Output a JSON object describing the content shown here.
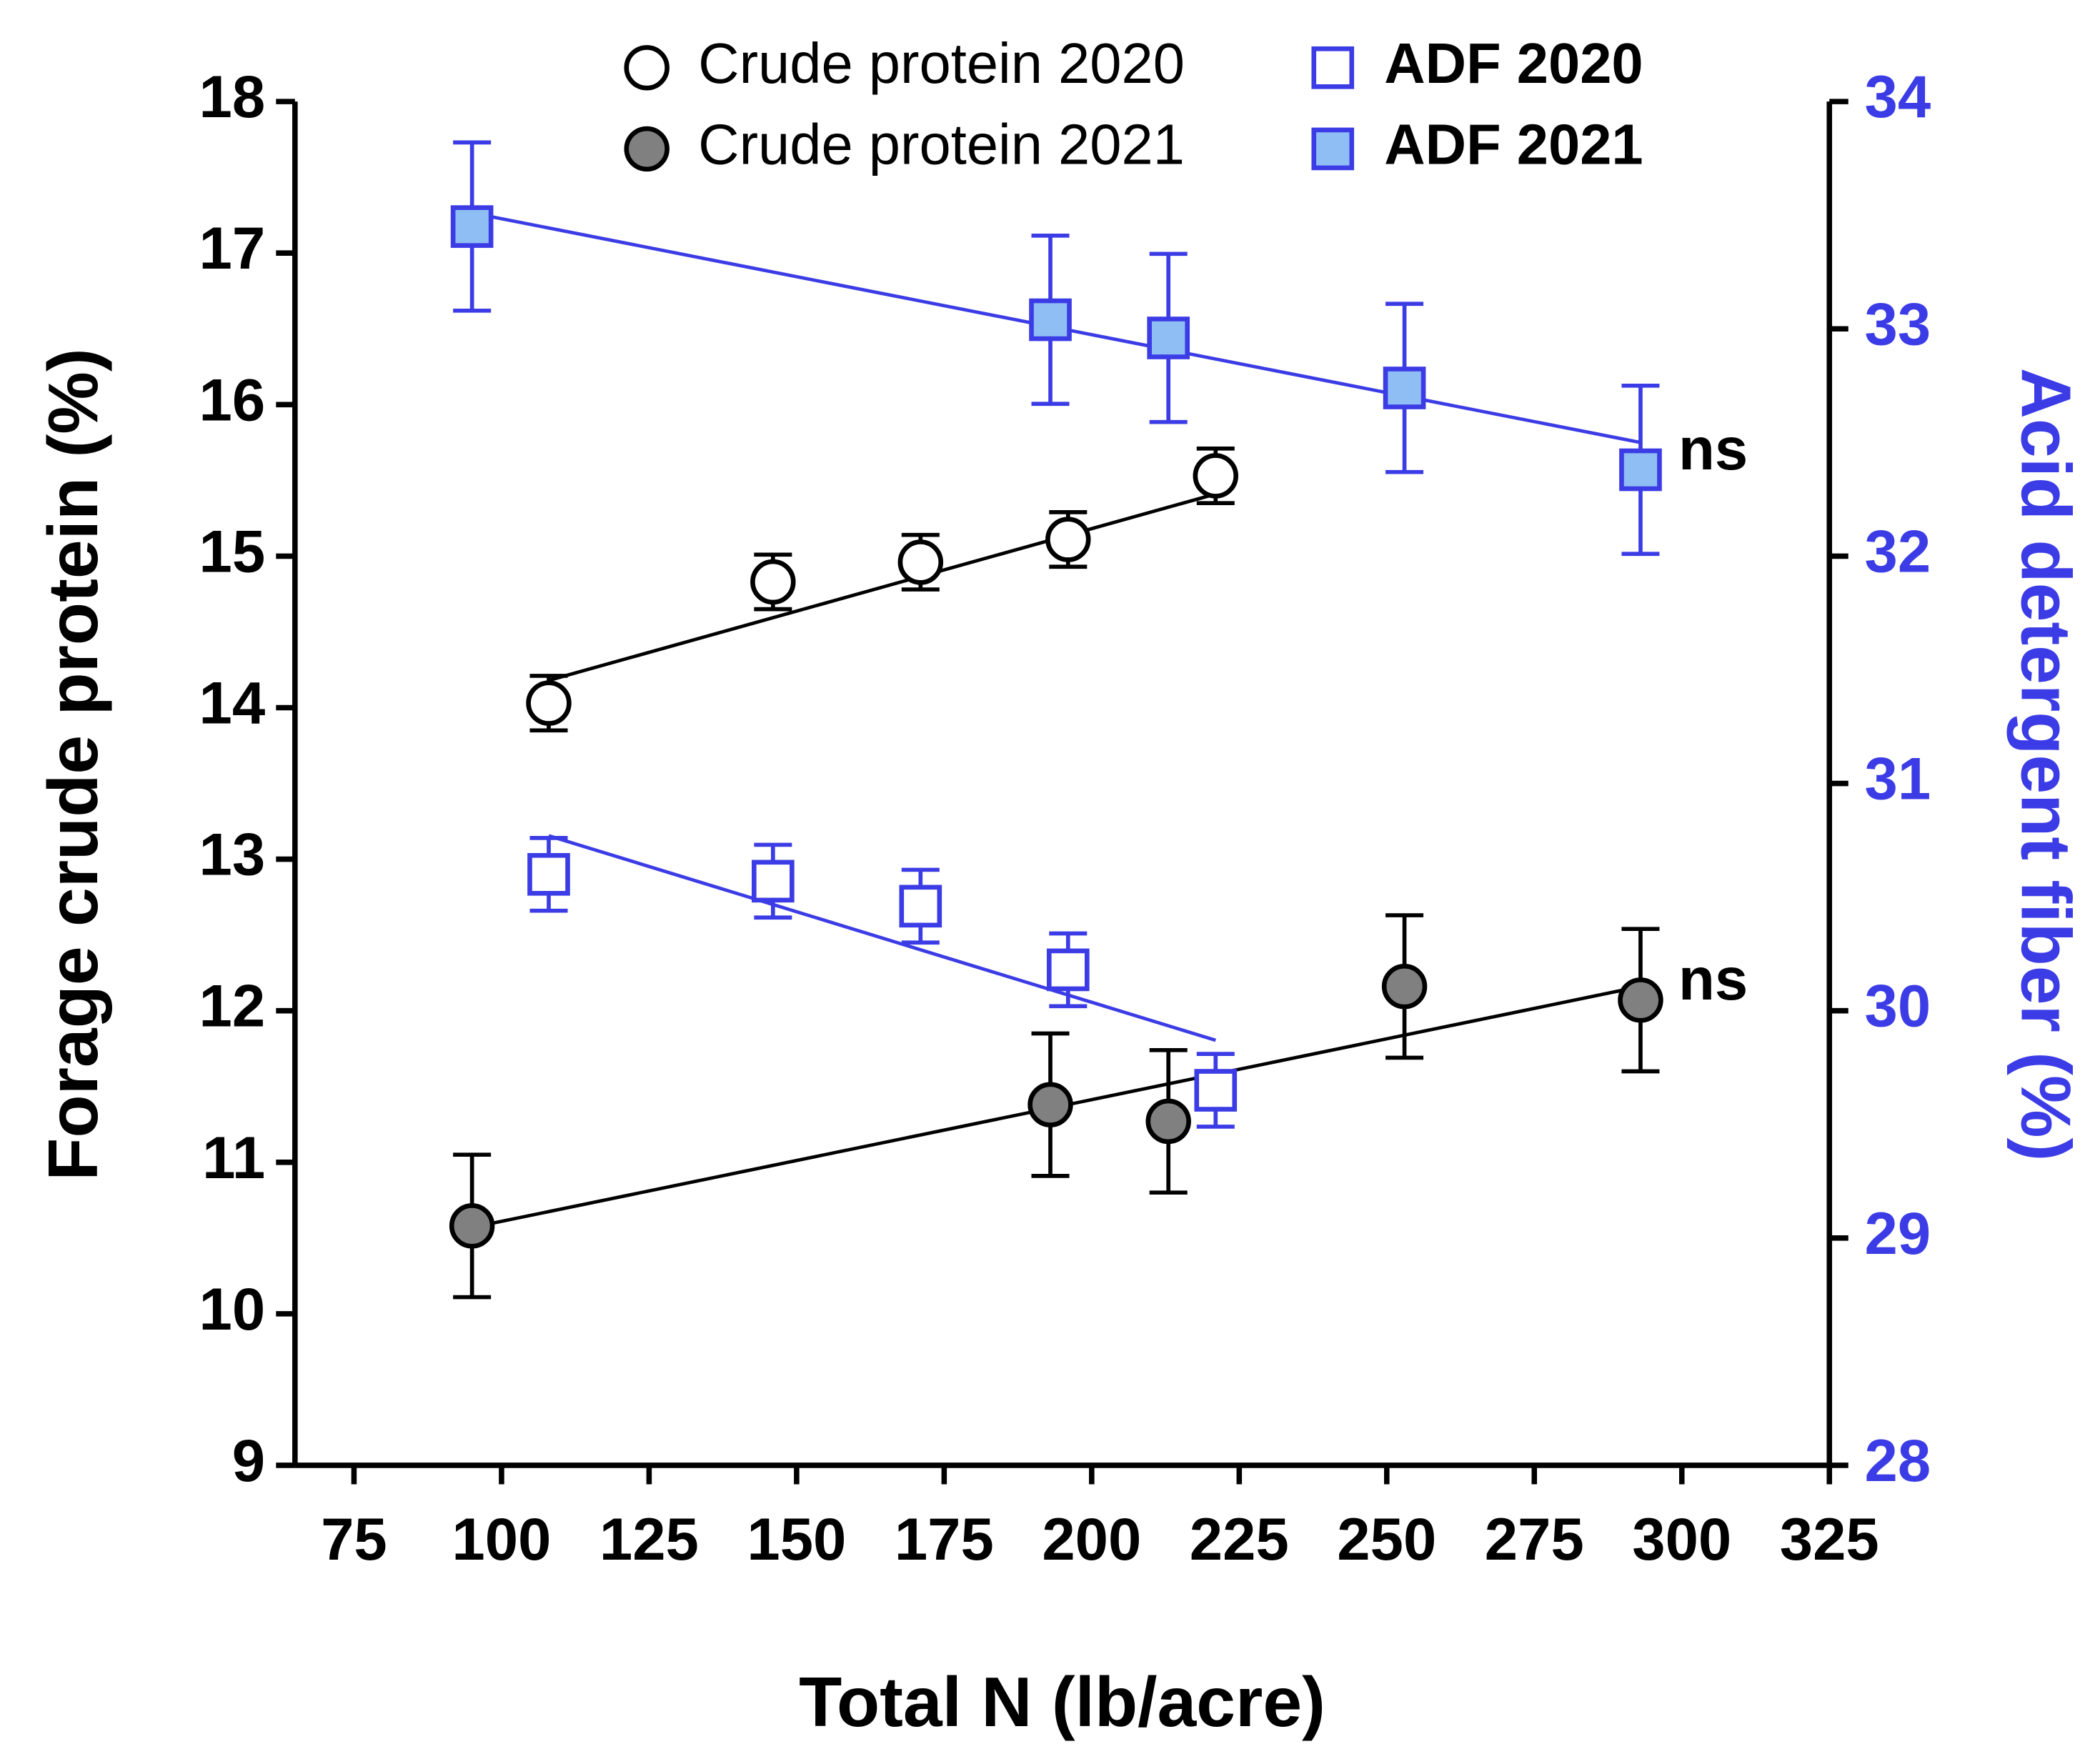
{
  "chart_data": {
    "type": "scatter",
    "x_label": "Total N (lb/acre)",
    "y_label": "Forage crude protein (%)",
    "y2_label": "Acid detergent fiber (%)",
    "xlim": [
      65,
      325
    ],
    "xticks": [
      75,
      100,
      125,
      150,
      175,
      200,
      225,
      250,
      275,
      300,
      325
    ],
    "ylim": [
      9,
      18
    ],
    "yticks": [
      9,
      10,
      11,
      12,
      13,
      14,
      15,
      16,
      17,
      18
    ],
    "y2lim": [
      28,
      34
    ],
    "y2ticks": [
      28,
      29,
      30,
      31,
      32,
      33,
      34
    ],
    "y2_color": "#3c3ce6",
    "series": [
      {
        "name": "Crude protein 2020",
        "marker": "circle",
        "color": "#000000",
        "fill": "#ffffff",
        "x": [
          108,
          146,
          171,
          196,
          221
        ],
        "values": [
          14.03,
          14.83,
          14.96,
          15.11,
          15.53
        ],
        "errors": [
          0.18,
          0.18,
          0.18,
          0.18,
          0.18
        ],
        "trend": {
          "x": [
            108,
            221
          ],
          "values": [
            14.18,
            15.41
          ]
        }
      },
      {
        "name": "Crude protein 2021",
        "marker": "circle",
        "color": "#000000",
        "fill": "#808080",
        "x": [
          95,
          193,
          213,
          253,
          293
        ],
        "values": [
          10.58,
          11.38,
          11.27,
          12.16,
          12.07
        ],
        "errors": [
          0.47,
          0.47,
          0.47,
          0.47,
          0.47
        ],
        "trend": {
          "x": [
            95,
            293
          ],
          "values": [
            10.57,
            12.16
          ]
        },
        "annotation": "ns"
      },
      {
        "name": "ADF 2020",
        "marker": "square",
        "axis": "y2",
        "color": "#3c3ce6",
        "fill": "#ffffff",
        "x": [
          108,
          146,
          171,
          196,
          221
        ],
        "values": [
          30.6,
          30.57,
          30.46,
          30.18,
          29.65
        ],
        "errors": [
          0.16,
          0.16,
          0.16,
          0.16,
          0.16
        ],
        "trend": {
          "x": [
            108,
            221
          ],
          "values": [
            30.77,
            29.87
          ]
        }
      },
      {
        "name": "ADF 2021",
        "marker": "square",
        "axis": "y2",
        "color": "#3c3ce6",
        "fill": "#8fbef5",
        "x": [
          95,
          193,
          213,
          253,
          293
        ],
        "values": [
          33.45,
          33.04,
          32.96,
          32.74,
          32.38
        ],
        "errors": [
          0.37,
          0.37,
          0.37,
          0.37,
          0.37
        ],
        "trend": {
          "x": [
            95,
            293
          ],
          "values": [
            33.51,
            32.5
          ]
        },
        "annotation": "ns"
      }
    ]
  }
}
